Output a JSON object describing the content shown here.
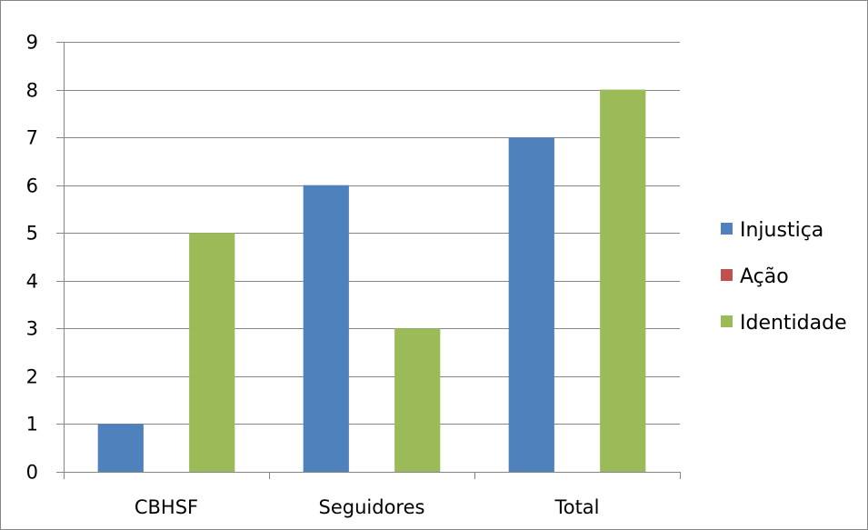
{
  "chart_data": {
    "type": "bar",
    "categories": [
      "CBHSF",
      "Seguidores",
      "Total"
    ],
    "series": [
      {
        "name": "Injustiça",
        "values": [
          1,
          6,
          7
        ],
        "color": "#4f81bd"
      },
      {
        "name": "Ação",
        "values": [
          0,
          0,
          0
        ],
        "color": "#c0504d"
      },
      {
        "name": "Identidade",
        "values": [
          5,
          3,
          8
        ],
        "color": "#9bbb59"
      }
    ],
    "title": "",
    "xlabel": "",
    "ylabel": "",
    "ylim": [
      0,
      9
    ],
    "yticks": [
      "0",
      "1",
      "2",
      "3",
      "4",
      "5",
      "6",
      "7",
      "8",
      "9"
    ],
    "grid": true,
    "legend_position": "right",
    "colors": {
      "gridline": "#868686",
      "axis": "#868686",
      "border": "#868686"
    }
  }
}
